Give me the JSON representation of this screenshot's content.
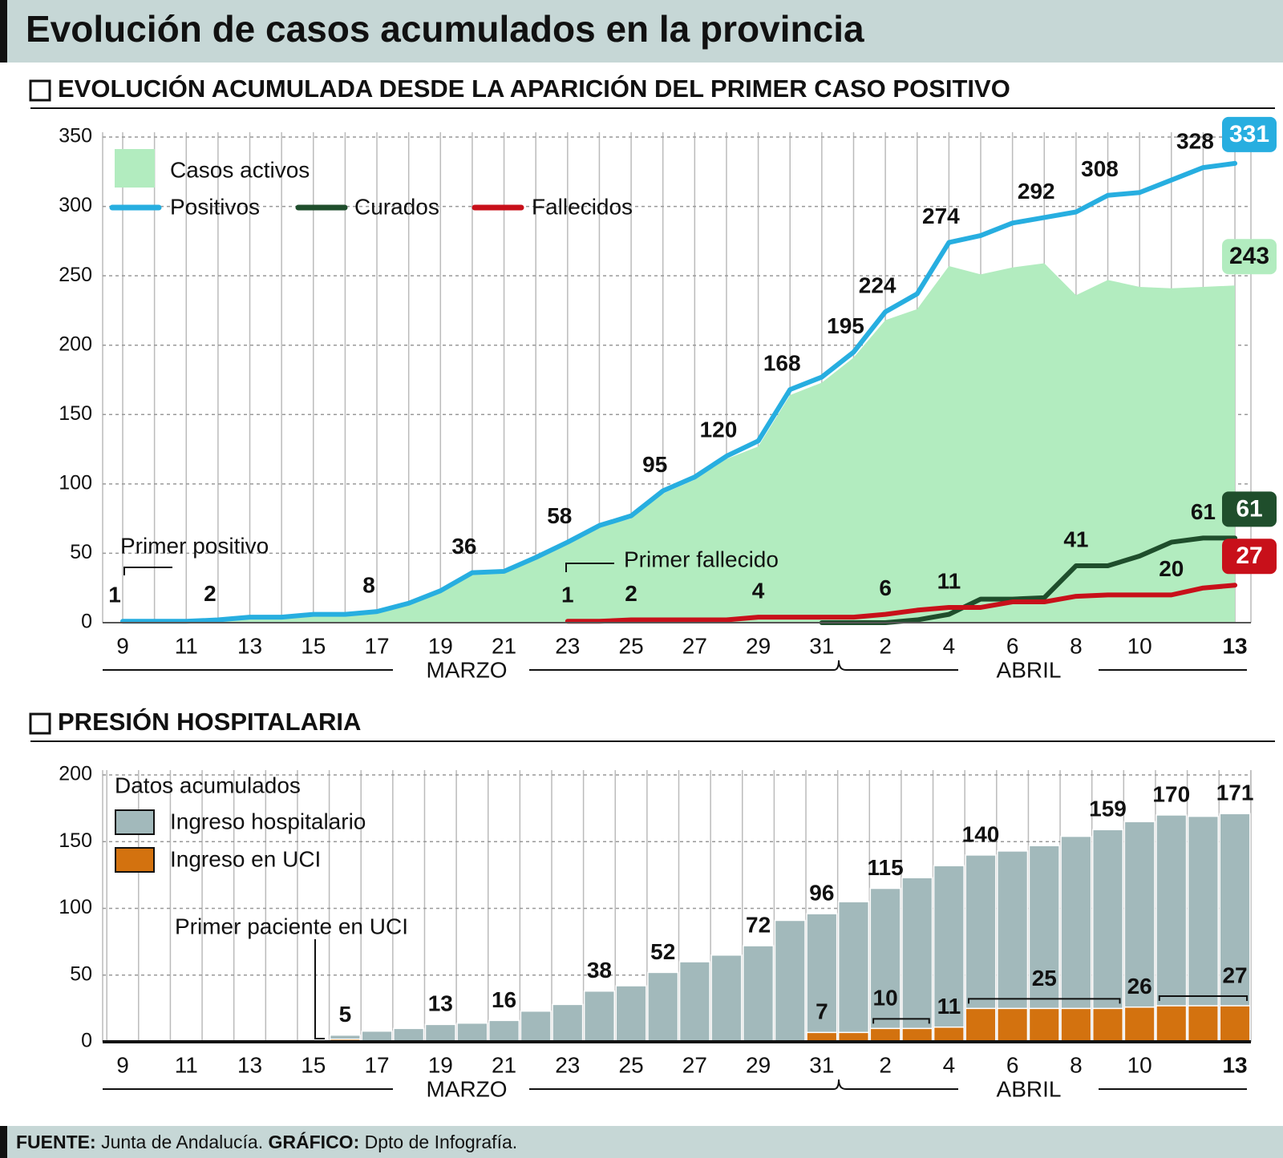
{
  "title": "Evolución de casos acumulados en la provincia",
  "chart_data": [
    {
      "type": "line",
      "title": "EVOLUCIÓN ACUMULADA DESDE LA APARICIÓN DEL PRIMER CASO POSITIVO",
      "categories": [
        "9",
        null,
        "11",
        null,
        "13",
        null,
        "15",
        null,
        "17",
        null,
        "19",
        null,
        "21",
        null,
        "23",
        null,
        "25",
        null,
        "27",
        null,
        "29",
        null,
        "31",
        null,
        "2",
        null,
        "4",
        null,
        "6",
        null,
        "8",
        null,
        "10",
        null,
        null,
        "13"
      ],
      "months": [
        "MARZO",
        "ABRIL"
      ],
      "annotations": [
        "Primer positivo",
        "Primer fallecido"
      ],
      "ylim": [
        0,
        350
      ],
      "yticks": [
        0,
        50,
        100,
        150,
        200,
        250,
        300,
        350
      ],
      "grid": true,
      "series": [
        {
          "name": "Casos activos",
          "type": "area",
          "color": "#b2ecbf",
          "values": [
            1,
            1,
            1,
            2,
            4,
            4,
            6,
            6,
            8,
            14,
            23,
            36,
            37,
            47,
            57,
            69,
            75,
            93,
            103,
            118,
            127,
            164,
            173,
            191,
            218,
            226,
            257,
            251,
            256,
            259,
            236,
            247,
            242,
            241,
            242,
            243
          ],
          "value_labels": [
            null,
            null,
            null,
            null,
            null,
            null,
            null,
            null,
            null,
            null,
            null,
            null,
            null,
            null,
            null,
            null,
            null,
            null,
            null,
            null,
            null,
            null,
            null,
            null,
            null,
            null,
            null,
            null,
            null,
            null,
            null,
            null,
            null,
            null,
            null,
            "243"
          ]
        },
        {
          "name": "Positivos",
          "type": "line",
          "color": "#27aee0",
          "values": [
            1,
            1,
            1,
            2,
            4,
            4,
            6,
            6,
            8,
            14,
            23,
            36,
            37,
            47,
            58,
            70,
            77,
            95,
            105,
            120,
            131,
            168,
            177,
            195,
            224,
            237,
            274,
            279,
            288,
            292,
            296,
            308,
            310,
            319,
            328,
            331
          ],
          "value_labels": [
            "1",
            null,
            null,
            "2",
            null,
            null,
            null,
            null,
            "8",
            null,
            null,
            "36",
            null,
            null,
            "58",
            null,
            null,
            "95",
            null,
            "120",
            null,
            "168",
            null,
            "195",
            "224",
            null,
            "274",
            null,
            null,
            "292",
            null,
            "308",
            null,
            null,
            "328",
            "331"
          ]
        },
        {
          "name": "Curados",
          "type": "line",
          "color": "#1f4e2c",
          "values": [
            null,
            null,
            null,
            null,
            null,
            null,
            null,
            null,
            null,
            null,
            null,
            null,
            null,
            null,
            null,
            null,
            null,
            null,
            null,
            null,
            null,
            null,
            0,
            0,
            0,
            2,
            6,
            17,
            17,
            18,
            41,
            41,
            48,
            58,
            61,
            61
          ],
          "value_labels": [
            null,
            null,
            null,
            null,
            null,
            null,
            null,
            null,
            null,
            null,
            null,
            null,
            null,
            null,
            null,
            null,
            null,
            null,
            null,
            null,
            null,
            null,
            null,
            null,
            null,
            null,
            null,
            null,
            null,
            null,
            "41",
            null,
            null,
            null,
            "61",
            "61"
          ]
        },
        {
          "name": "Fallecidos",
          "type": "line",
          "color": "#c8101a",
          "values": [
            null,
            null,
            null,
            null,
            null,
            null,
            null,
            null,
            null,
            null,
            null,
            null,
            null,
            null,
            1,
            1,
            2,
            2,
            2,
            2,
            4,
            4,
            4,
            4,
            6,
            9,
            11,
            11,
            15,
            15,
            19,
            20,
            20,
            20,
            25,
            27
          ],
          "value_labels": [
            null,
            null,
            null,
            null,
            null,
            null,
            null,
            null,
            null,
            null,
            null,
            null,
            null,
            null,
            "1",
            null,
            "2",
            null,
            null,
            null,
            "4",
            null,
            null,
            null,
            "6",
            null,
            "11",
            null,
            null,
            null,
            null,
            null,
            null,
            "20",
            null,
            "27"
          ]
        }
      ]
    },
    {
      "type": "bar",
      "title": "PRESIÓN HOSPITALARIA",
      "legend_title": "Datos acumulados",
      "categories": [
        "9",
        null,
        "11",
        null,
        "13",
        null,
        "15",
        null,
        "17",
        null,
        "19",
        null,
        "21",
        null,
        "23",
        null,
        "25",
        null,
        "27",
        null,
        "29",
        null,
        "31",
        null,
        "2",
        null,
        "4",
        null,
        "6",
        null,
        "8",
        null,
        "10",
        null,
        null,
        "13"
      ],
      "months": [
        "MARZO",
        "ABRIL"
      ],
      "annotations": [
        "Primer paciente en UCI"
      ],
      "ylim": [
        0,
        200
      ],
      "yticks": [
        0,
        50,
        100,
        150,
        200
      ],
      "grid": true,
      "series": [
        {
          "name": "Ingreso hospitalario",
          "color": "#a2b9bb",
          "values": [
            null,
            null,
            null,
            null,
            null,
            null,
            null,
            5,
            8,
            10,
            13,
            14,
            16,
            23,
            28,
            38,
            42,
            52,
            60,
            65,
            72,
            91,
            96,
            105,
            115,
            123,
            132,
            140,
            143,
            147,
            154,
            159,
            165,
            170,
            169,
            171
          ],
          "value_labels": [
            null,
            null,
            null,
            null,
            null,
            null,
            null,
            "5",
            null,
            null,
            "13",
            null,
            "16",
            null,
            null,
            "38",
            null,
            "52",
            null,
            null,
            "72",
            null,
            "96",
            null,
            "115",
            null,
            null,
            "140",
            null,
            null,
            null,
            "159",
            null,
            "170",
            null,
            "171"
          ]
        },
        {
          "name": "Ingreso en UCI",
          "color": "#d3720f",
          "values": [
            null,
            null,
            null,
            null,
            null,
            null,
            null,
            2,
            0,
            0,
            0,
            0,
            0,
            0,
            0,
            0,
            0,
            0,
            0,
            0,
            0,
            0,
            7,
            7,
            10,
            10,
            11,
            25,
            25,
            25,
            25,
            25,
            26,
            27,
            27,
            27
          ],
          "value_labels": [
            null,
            null,
            null,
            null,
            null,
            null,
            null,
            null,
            null,
            null,
            null,
            null,
            null,
            null,
            null,
            null,
            null,
            null,
            null,
            null,
            null,
            null,
            "7",
            null,
            "10",
            null,
            "11",
            null,
            null,
            "25",
            null,
            null,
            "26",
            null,
            null,
            "27"
          ]
        }
      ]
    }
  ],
  "footer": {
    "source_label": "FUENTE:",
    "source": "Junta de Andalucía.",
    "credit_label": "GRÁFICO:",
    "credit": "Dpto de Infografía."
  }
}
